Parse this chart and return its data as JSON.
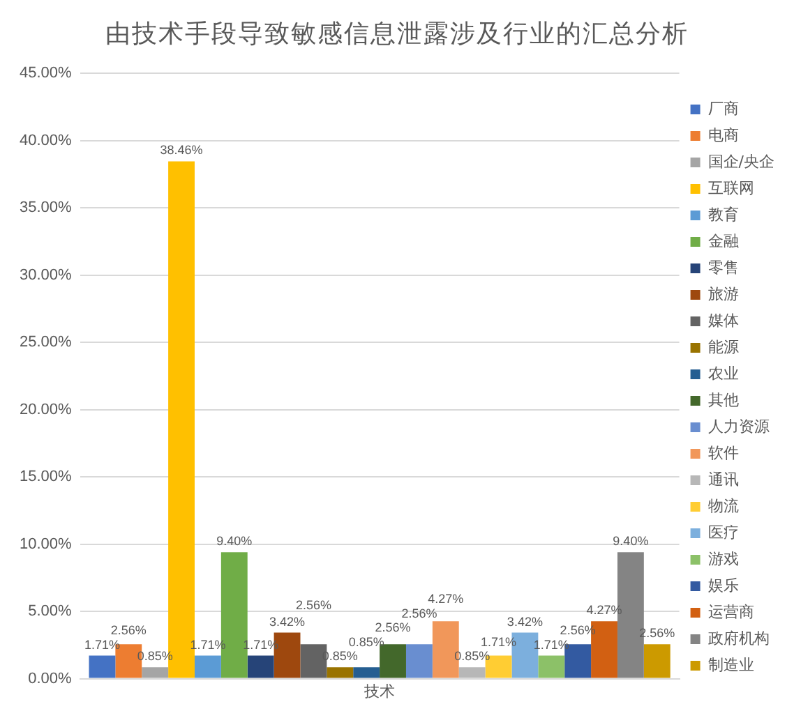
{
  "chart_data": {
    "type": "bar",
    "title": "由技术手段导致敏感信息泄露涉及行业的汇总分析",
    "categories": [
      "技术"
    ],
    "ylim": [
      0,
      45
    ],
    "yticks": [
      {
        "value": 0,
        "label": "0.00%"
      },
      {
        "value": 5,
        "label": "5.00%"
      },
      {
        "value": 10,
        "label": "10.00%"
      },
      {
        "value": 15,
        "label": "15.00%"
      },
      {
        "value": 20,
        "label": "20.00%"
      },
      {
        "value": 25,
        "label": "25.00%"
      },
      {
        "value": 30,
        "label": "30.00%"
      },
      {
        "value": 35,
        "label": "35.00%"
      },
      {
        "value": 40,
        "label": "40.00%"
      },
      {
        "value": 45,
        "label": "45.00%"
      }
    ],
    "grid": "y",
    "legend": "right",
    "series": [
      {
        "name": "厂商",
        "color": "#4472c4",
        "values": [
          1.71
        ],
        "value_labels": [
          "1.71%"
        ]
      },
      {
        "name": "电商",
        "color": "#ed7d31",
        "values": [
          2.56
        ],
        "value_labels": [
          "2.56%"
        ]
      },
      {
        "name": "国企/央企",
        "color": "#a5a5a5",
        "values": [
          0.85
        ],
        "value_labels": [
          "0.85%"
        ]
      },
      {
        "name": "互联网",
        "color": "#ffc000",
        "values": [
          38.46
        ],
        "value_labels": [
          "38.46%"
        ]
      },
      {
        "name": "教育",
        "color": "#5b9bd5",
        "values": [
          1.71
        ],
        "value_labels": [
          "1.71%"
        ]
      },
      {
        "name": "金融",
        "color": "#70ad47",
        "values": [
          9.4
        ],
        "value_labels": [
          "9.40%"
        ]
      },
      {
        "name": "零售",
        "color": "#264478",
        "values": [
          1.71
        ],
        "value_labels": [
          "1.71%"
        ]
      },
      {
        "name": "旅游",
        "color": "#9e480e",
        "values": [
          3.42
        ],
        "value_labels": [
          "3.42%"
        ]
      },
      {
        "name": "媒体",
        "color": "#636363",
        "values": [
          2.56
        ],
        "value_labels": [
          "2.56%"
        ]
      },
      {
        "name": "能源",
        "color": "#997300",
        "values": [
          0.85
        ],
        "value_labels": [
          "0.85%"
        ]
      },
      {
        "name": "农业",
        "color": "#255e91",
        "values": [
          0.85
        ],
        "value_labels": [
          "0.85%"
        ]
      },
      {
        "name": "其他",
        "color": "#43682b",
        "values": [
          2.56
        ],
        "value_labels": [
          "2.56%"
        ]
      },
      {
        "name": "人力资源",
        "color": "#698ed0",
        "values": [
          2.56
        ],
        "value_labels": [
          "2.56%"
        ]
      },
      {
        "name": "软件",
        "color": "#f1975a",
        "values": [
          4.27
        ],
        "value_labels": [
          "4.27%"
        ]
      },
      {
        "name": "通讯",
        "color": "#b7b7b7",
        "values": [
          0.85
        ],
        "value_labels": [
          "0.85%"
        ]
      },
      {
        "name": "物流",
        "color": "#ffcd33",
        "values": [
          1.71
        ],
        "value_labels": [
          "1.71%"
        ]
      },
      {
        "name": "医疗",
        "color": "#7cafdd",
        "values": [
          3.42
        ],
        "value_labels": [
          "3.42%"
        ]
      },
      {
        "name": "游戏",
        "color": "#8cc168",
        "values": [
          1.71
        ],
        "value_labels": [
          "1.71%"
        ]
      },
      {
        "name": "娱乐",
        "color": "#335aa1",
        "values": [
          2.56
        ],
        "value_labels": [
          "2.56%"
        ]
      },
      {
        "name": "运营商",
        "color": "#d26012",
        "values": [
          4.27
        ],
        "value_labels": [
          "4.27%"
        ]
      },
      {
        "name": "政府机构",
        "color": "#848484",
        "values": [
          9.4
        ],
        "value_labels": [
          "9.40%"
        ]
      },
      {
        "name": "制造业",
        "color": "#cc9a00",
        "values": [
          2.56
        ],
        "value_labels": [
          "2.56%"
        ]
      }
    ]
  }
}
